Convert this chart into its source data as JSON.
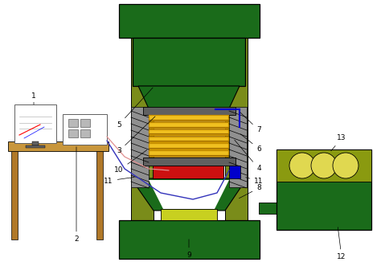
{
  "bg_color": "#ffffff",
  "green_dark": "#1a6b1a",
  "green_dark2": "#2d7a2d",
  "olive": "#7a8c1a",
  "olive2": "#8c9c1c",
  "yellow_green": "#c8d020",
  "yellow": "#f0c020",
  "gold": "#c89000",
  "gray_dark": "#606060",
  "gray_mid": "#909090",
  "gray_light": "#b8b8b8",
  "red": "#cc1010",
  "blue_dark": "#0000cc",
  "blue_line": "#3333bb",
  "pink_line": "#e09090",
  "tan": "#c8963c",
  "tan2": "#b07828",
  "white": "#ffffff",
  "black": "#000000",
  "circle_fill": "#e0d850",
  "circle_panel": "#8a9a10"
}
